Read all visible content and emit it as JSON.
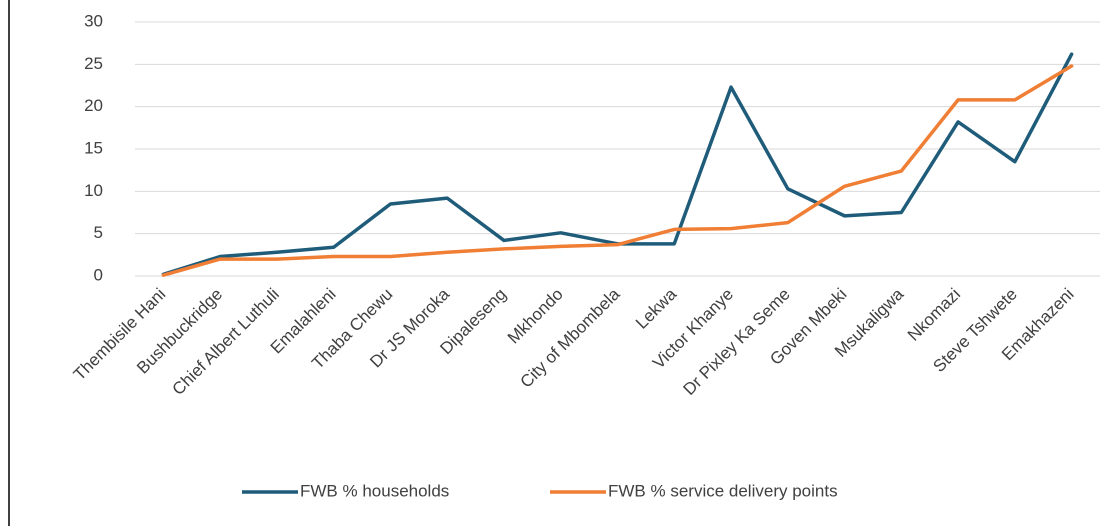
{
  "chart_data": {
    "type": "line",
    "categories": [
      "Thembisile Hani",
      "Bushbuckridge",
      "Chief Albert Luthuli",
      "Emalahleni",
      "Thaba Chewu",
      "Dr JS Moroka",
      "Dipaleseng",
      "Mkhondo",
      "City of Mbombela",
      "Lekwa",
      "Victor Khanye",
      "Dr Pixley Ka Seme",
      "Goven Mbeki",
      "Msukaligwa",
      "Nkomazi",
      "Steve Tshwete",
      "Emakhazeni"
    ],
    "series": [
      {
        "name": "FWB % households",
        "color": "#1f5c7a",
        "values": [
          0.2,
          2.3,
          2.8,
          3.4,
          8.5,
          9.2,
          4.2,
          5.1,
          3.8,
          3.8,
          22.3,
          10.3,
          7.1,
          7.5,
          18.2,
          13.5,
          26.2
        ]
      },
      {
        "name": "FWB % service delivery points",
        "color": "#f07f35",
        "values": [
          0.1,
          2.0,
          2.0,
          2.3,
          2.3,
          2.8,
          3.2,
          3.5,
          3.7,
          5.5,
          5.6,
          6.3,
          10.6,
          12.4,
          20.8,
          20.8,
          24.8
        ]
      }
    ],
    "ylim": [
      0,
      30
    ],
    "yticks": [
      0,
      5,
      10,
      15,
      20,
      25,
      30
    ],
    "grid": true,
    "legend": "bottom"
  }
}
